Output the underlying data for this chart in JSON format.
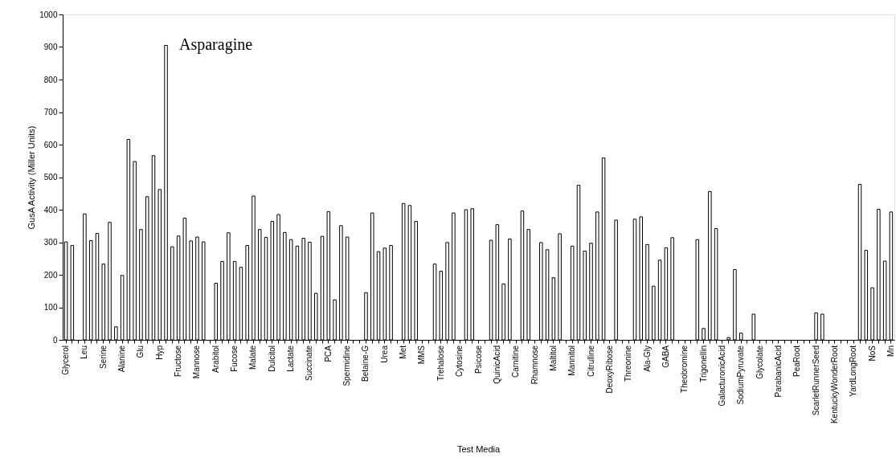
{
  "chart_data": {
    "type": "bar",
    "xlabel": "Test Media",
    "ylabel": "GusA Activity (Miller Units)",
    "categories": [
      "Glycerol",
      null,
      null,
      "Leu",
      null,
      null,
      "Serine",
      null,
      null,
      "Alanine",
      null,
      null,
      "Glu",
      null,
      null,
      "Hyp",
      null,
      null,
      "Fructose",
      null,
      null,
      "Mannose",
      null,
      null,
      "Arabitol",
      null,
      null,
      "Fucose",
      null,
      null,
      "Malate",
      null,
      null,
      "Dulcitol",
      null,
      null,
      "Lactate",
      null,
      null,
      "Succinate",
      null,
      null,
      "PCA",
      null,
      null,
      "Spermidine",
      null,
      null,
      "Betaine-G",
      null,
      null,
      "Urea",
      null,
      null,
      "Met",
      null,
      null,
      "MMS",
      null,
      null,
      "Trehalose",
      null,
      null,
      "Cytosine",
      null,
      null,
      "Psicose",
      null,
      null,
      "QuinicAcid",
      null,
      null,
      "Carnitine",
      null,
      null,
      "Rhamnose",
      null,
      null,
      "Maltitol",
      null,
      null,
      "Mannitol",
      null,
      null,
      "Citrulline",
      null,
      null,
      "DeoxyRibose",
      null,
      null,
      "Threonine",
      null,
      null,
      "Ala-Gly",
      null,
      null,
      "GABA",
      null,
      null,
      "Theobromine",
      null,
      null,
      "Trigonellin",
      null,
      null,
      "GalacturonicAcid",
      null,
      null,
      "SodiumPyruvate",
      null,
      null,
      "Glycolate",
      null,
      null,
      "ParabanicAcid",
      null,
      null,
      "PeaRoot",
      null,
      null,
      "ScarletRunnerSeed",
      null,
      null,
      "KentuckyWonderRoot",
      null,
      null,
      "YardLongRoot",
      null,
      null,
      "NoS",
      null,
      null,
      "Mn"
    ],
    "values": [
      301,
      290,
      null,
      387,
      305,
      327,
      233,
      361,
      40,
      198,
      616,
      548,
      339,
      440,
      566,
      462,
      905,
      286,
      319,
      374,
      304,
      316,
      301,
      null,
      174,
      241,
      329,
      241,
      223,
      290,
      442,
      339,
      315,
      364,
      385,
      330,
      308,
      288,
      312,
      300,
      143,
      318,
      394,
      123,
      351,
      316,
      null,
      null,
      145,
      390,
      271,
      282,
      290,
      null,
      419,
      413,
      364,
      null,
      null,
      233,
      211,
      299,
      390,
      null,
      400,
      403,
      null,
      null,
      306,
      354,
      172,
      310,
      null,
      396,
      339,
      null,
      299,
      277,
      191,
      326,
      null,
      288,
      475,
      273,
      297,
      393,
      559,
      null,
      368,
      null,
      null,
      371,
      378,
      293,
      165,
      245,
      283,
      314,
      null,
      null,
      null,
      308,
      35,
      456,
      342,
      null,
      7,
      216,
      21,
      null,
      79,
      null,
      null,
      null,
      null,
      null,
      null,
      null,
      null,
      null,
      83,
      79,
      null,
      null,
      null,
      null,
      null,
      478,
      275,
      160,
      401,
      242,
      393
    ],
    "color": "#ffffff",
    "ylim": [
      0,
      1000
    ],
    "yticks": [
      0,
      100,
      200,
      300,
      400,
      500,
      600,
      700,
      800,
      900,
      1000
    ],
    "grid": false,
    "annotations": [
      "Asparagine"
    ]
  }
}
